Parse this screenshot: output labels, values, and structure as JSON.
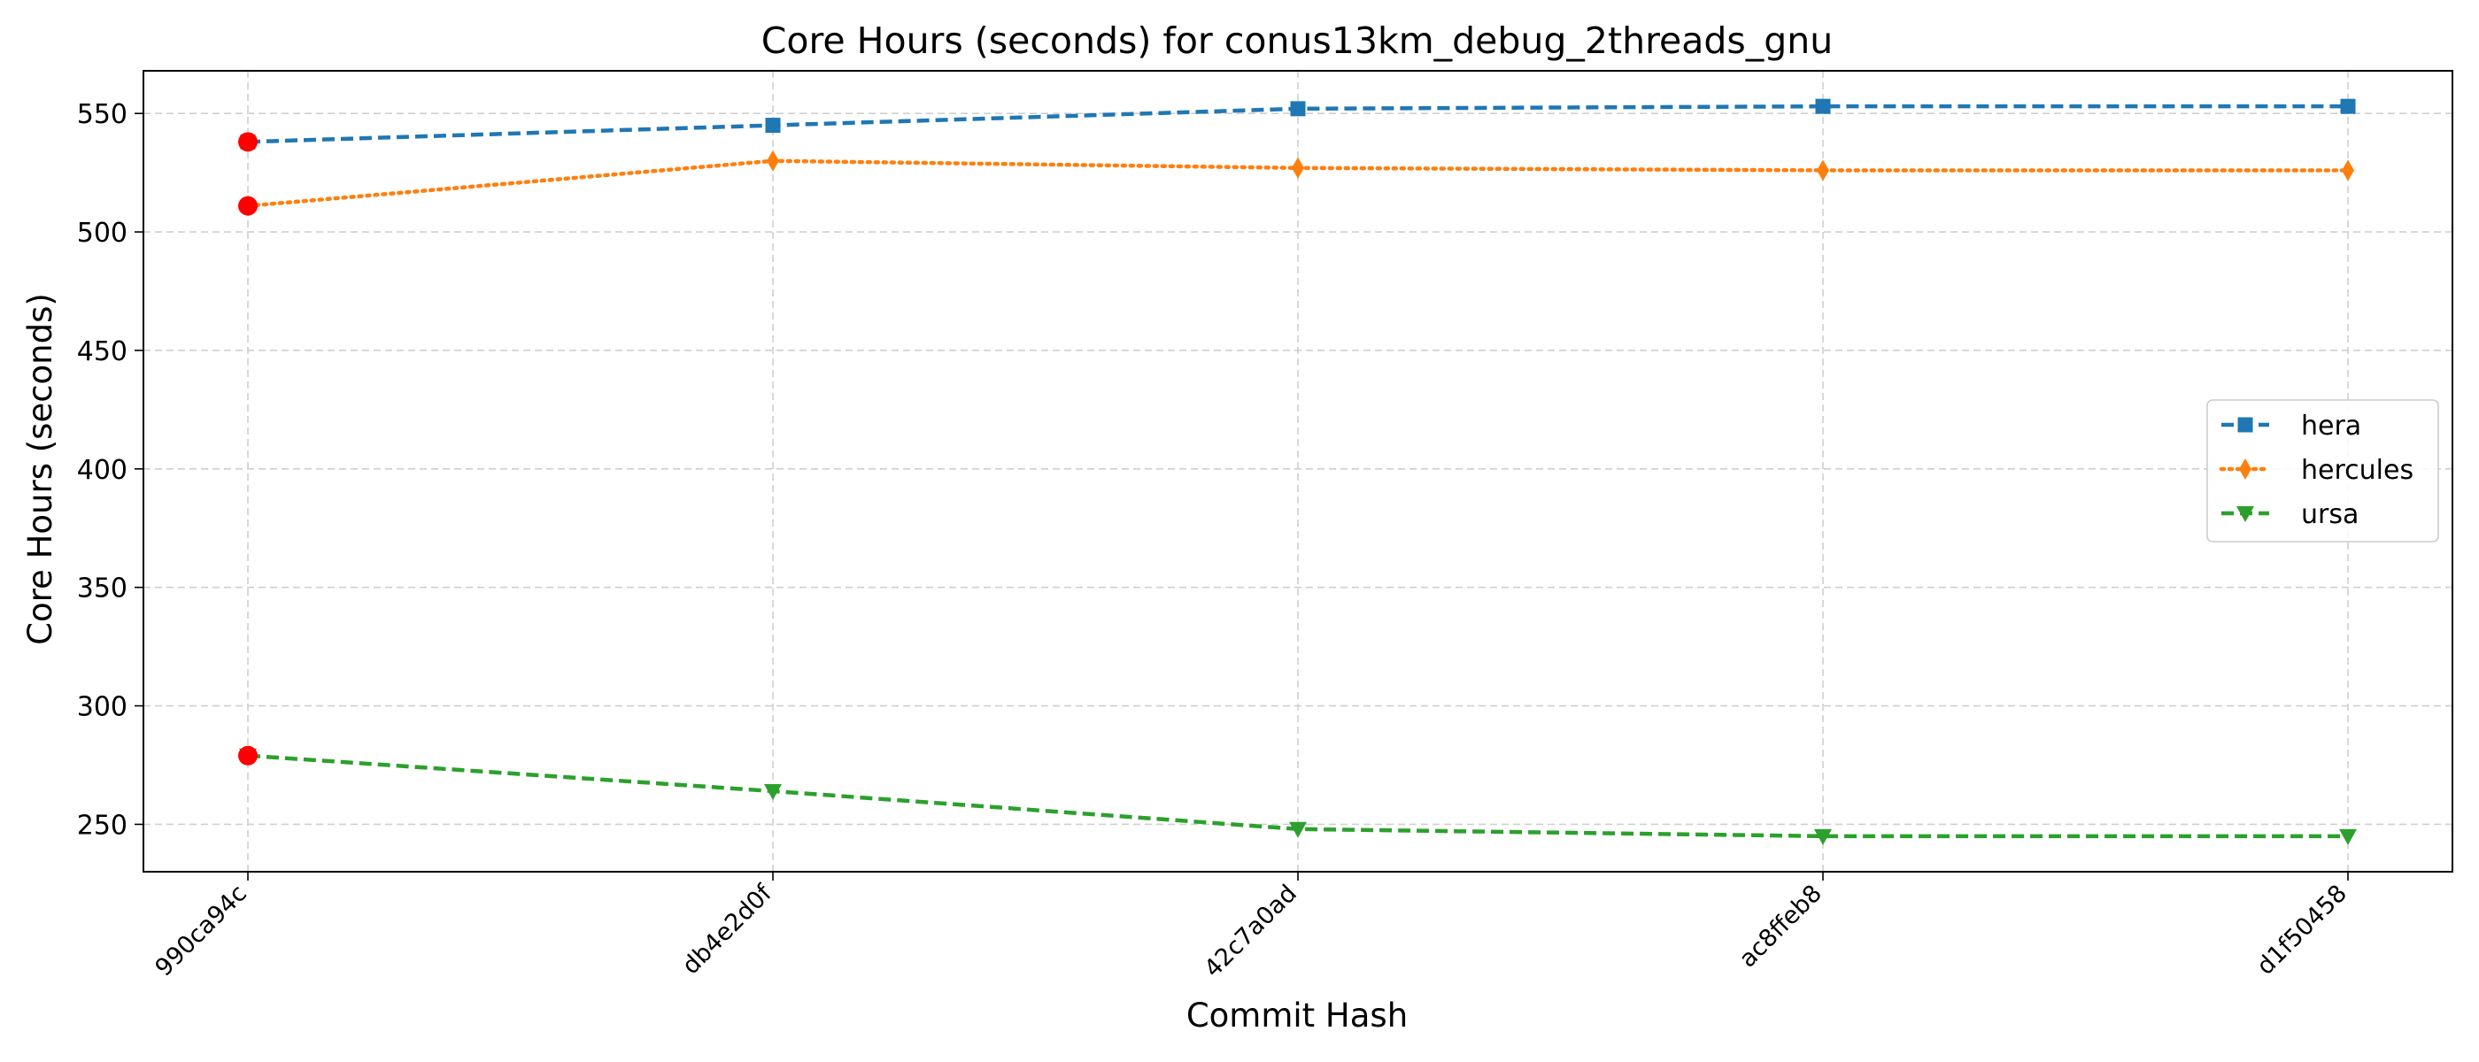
{
  "chart_data": {
    "type": "line",
    "title": "Core Hours (seconds) for conus13km_debug_2threads_gnu",
    "xlabel": "Commit Hash",
    "ylabel": "Core Hours (seconds)",
    "categories": [
      "990ca94c",
      "db4e2d0f",
      "42c7a0ad",
      "ac8ffeb8",
      "d1f50458"
    ],
    "ylim": [
      230,
      568
    ],
    "yticks": [
      250,
      300,
      350,
      400,
      450,
      500,
      550
    ],
    "grid": true,
    "legend_position": "center-right",
    "series": [
      {
        "name": "hera",
        "values": [
          538,
          545,
          552,
          553,
          553
        ],
        "color": "#1f77b4",
        "marker": "square",
        "linestyle": "dashed"
      },
      {
        "name": "hercules",
        "values": [
          511,
          530,
          527,
          526,
          526
        ],
        "color": "#ff7f0e",
        "marker": "thin-diamond",
        "linestyle": "dotted"
      },
      {
        "name": "ursa",
        "values": [
          279,
          264,
          248,
          245,
          245
        ],
        "color": "#2ca02c",
        "marker": "triangle-down",
        "linestyle": "dashed"
      }
    ],
    "highlight": {
      "category_index": 0,
      "color": "#ff0000"
    }
  }
}
